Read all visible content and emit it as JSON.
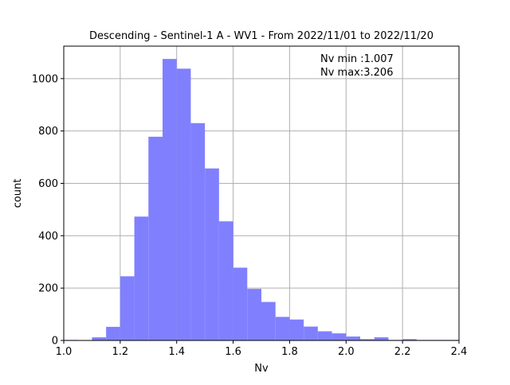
{
  "chart_data": {
    "type": "bar",
    "title": "Descending - Sentinel-1 A - WV1 - From 2022/11/01 to 2022/11/20",
    "xlabel": "Nv",
    "ylabel": "count",
    "xlim": [
      1.0,
      2.4
    ],
    "ylim": [
      0,
      1124
    ],
    "x_ticks": [
      "1.0",
      "1.2",
      "1.4",
      "1.6",
      "1.8",
      "2.0",
      "2.2",
      "2.4"
    ],
    "y_ticks": [
      "0",
      "200",
      "400",
      "600",
      "800",
      "1000"
    ],
    "grid": true,
    "bin_width": 0.05,
    "bins": [
      {
        "x0": 1.0,
        "x1": 1.05,
        "count": 2
      },
      {
        "x0": 1.05,
        "x1": 1.1,
        "count": 0
      },
      {
        "x0": 1.1,
        "x1": 1.15,
        "count": 12
      },
      {
        "x0": 1.15,
        "x1": 1.2,
        "count": 52
      },
      {
        "x0": 1.2,
        "x1": 1.25,
        "count": 245
      },
      {
        "x0": 1.25,
        "x1": 1.3,
        "count": 473
      },
      {
        "x0": 1.3,
        "x1": 1.35,
        "count": 778
      },
      {
        "x0": 1.35,
        "x1": 1.4,
        "count": 1075
      },
      {
        "x0": 1.4,
        "x1": 1.45,
        "count": 1038
      },
      {
        "x0": 1.45,
        "x1": 1.5,
        "count": 830
      },
      {
        "x0": 1.5,
        "x1": 1.55,
        "count": 657
      },
      {
        "x0": 1.55,
        "x1": 1.6,
        "count": 455
      },
      {
        "x0": 1.6,
        "x1": 1.65,
        "count": 278
      },
      {
        "x0": 1.65,
        "x1": 1.7,
        "count": 197
      },
      {
        "x0": 1.7,
        "x1": 1.75,
        "count": 147
      },
      {
        "x0": 1.75,
        "x1": 1.8,
        "count": 90
      },
      {
        "x0": 1.8,
        "x1": 1.85,
        "count": 80
      },
      {
        "x0": 1.85,
        "x1": 1.9,
        "count": 53
      },
      {
        "x0": 1.9,
        "x1": 1.95,
        "count": 35
      },
      {
        "x0": 1.95,
        "x1": 2.0,
        "count": 27
      },
      {
        "x0": 2.0,
        "x1": 2.05,
        "count": 15
      },
      {
        "x0": 2.05,
        "x1": 2.1,
        "count": 5
      },
      {
        "x0": 2.1,
        "x1": 2.15,
        "count": 12
      },
      {
        "x0": 2.15,
        "x1": 2.2,
        "count": 2
      },
      {
        "x0": 2.2,
        "x1": 2.25,
        "count": 5
      },
      {
        "x0": 2.25,
        "x1": 2.3,
        "count": 2
      },
      {
        "x0": 2.3,
        "x1": 2.35,
        "count": 2
      },
      {
        "x0": 2.35,
        "x1": 2.4,
        "count": 2
      }
    ],
    "annotations": [
      "Nv min :1.007",
      "Nv max:3.206"
    ],
    "bar_color": "#8080ff",
    "grid_color": "#b0b0b0"
  }
}
